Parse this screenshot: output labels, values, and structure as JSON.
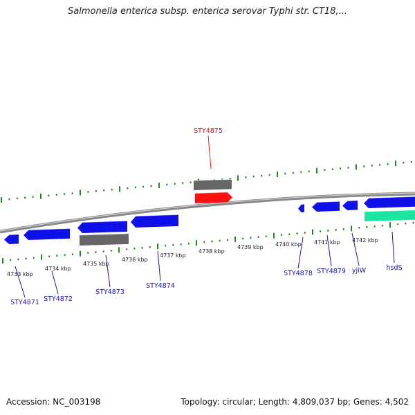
{
  "title": "Salmonella enterica subsp. enterica serovar Typhi str. CT18,...",
  "footer": {
    "accession": "Accession: NC_003198",
    "stats": "Topology: circular; Length: 4,809,037 bp; Genes: 4,502"
  },
  "ruler": {
    "unit": "kbp",
    "ticks": [
      "4733 kbp",
      "4734 kbp",
      "4735 kbp",
      "4736 kbp",
      "4737 kbp",
      "4738 kbp",
      "4739 kbp",
      "4740 kbp",
      "4741 kbp",
      "4742 kbp"
    ]
  },
  "genes": [
    {
      "name": "STY4871",
      "color": "#1010e8"
    },
    {
      "name": "STY4872",
      "color": "#1010e8"
    },
    {
      "name": "STY4873",
      "color": "#1010e8"
    },
    {
      "name": "STY4874",
      "color": "#1010e8"
    },
    {
      "name": "STY4875",
      "color": "#ff1010",
      "highlight": true
    },
    {
      "name": "STY4878",
      "color": "#1010e8"
    },
    {
      "name": "STY4879",
      "color": "#1010e8"
    },
    {
      "name": "yjiW",
      "color": "#1010e8"
    },
    {
      "name": "hsdS",
      "color": "#1010e8"
    }
  ],
  "colors": {
    "forward_gene": "#1010e8",
    "reverse_gene": "#1010e8",
    "highlight_gene": "#ff1010",
    "pseudo_block": "#666666",
    "rna_block": "#19e6a0",
    "backbone": "#888888",
    "tick": "#1a8a1a",
    "label": "#1414b4"
  }
}
